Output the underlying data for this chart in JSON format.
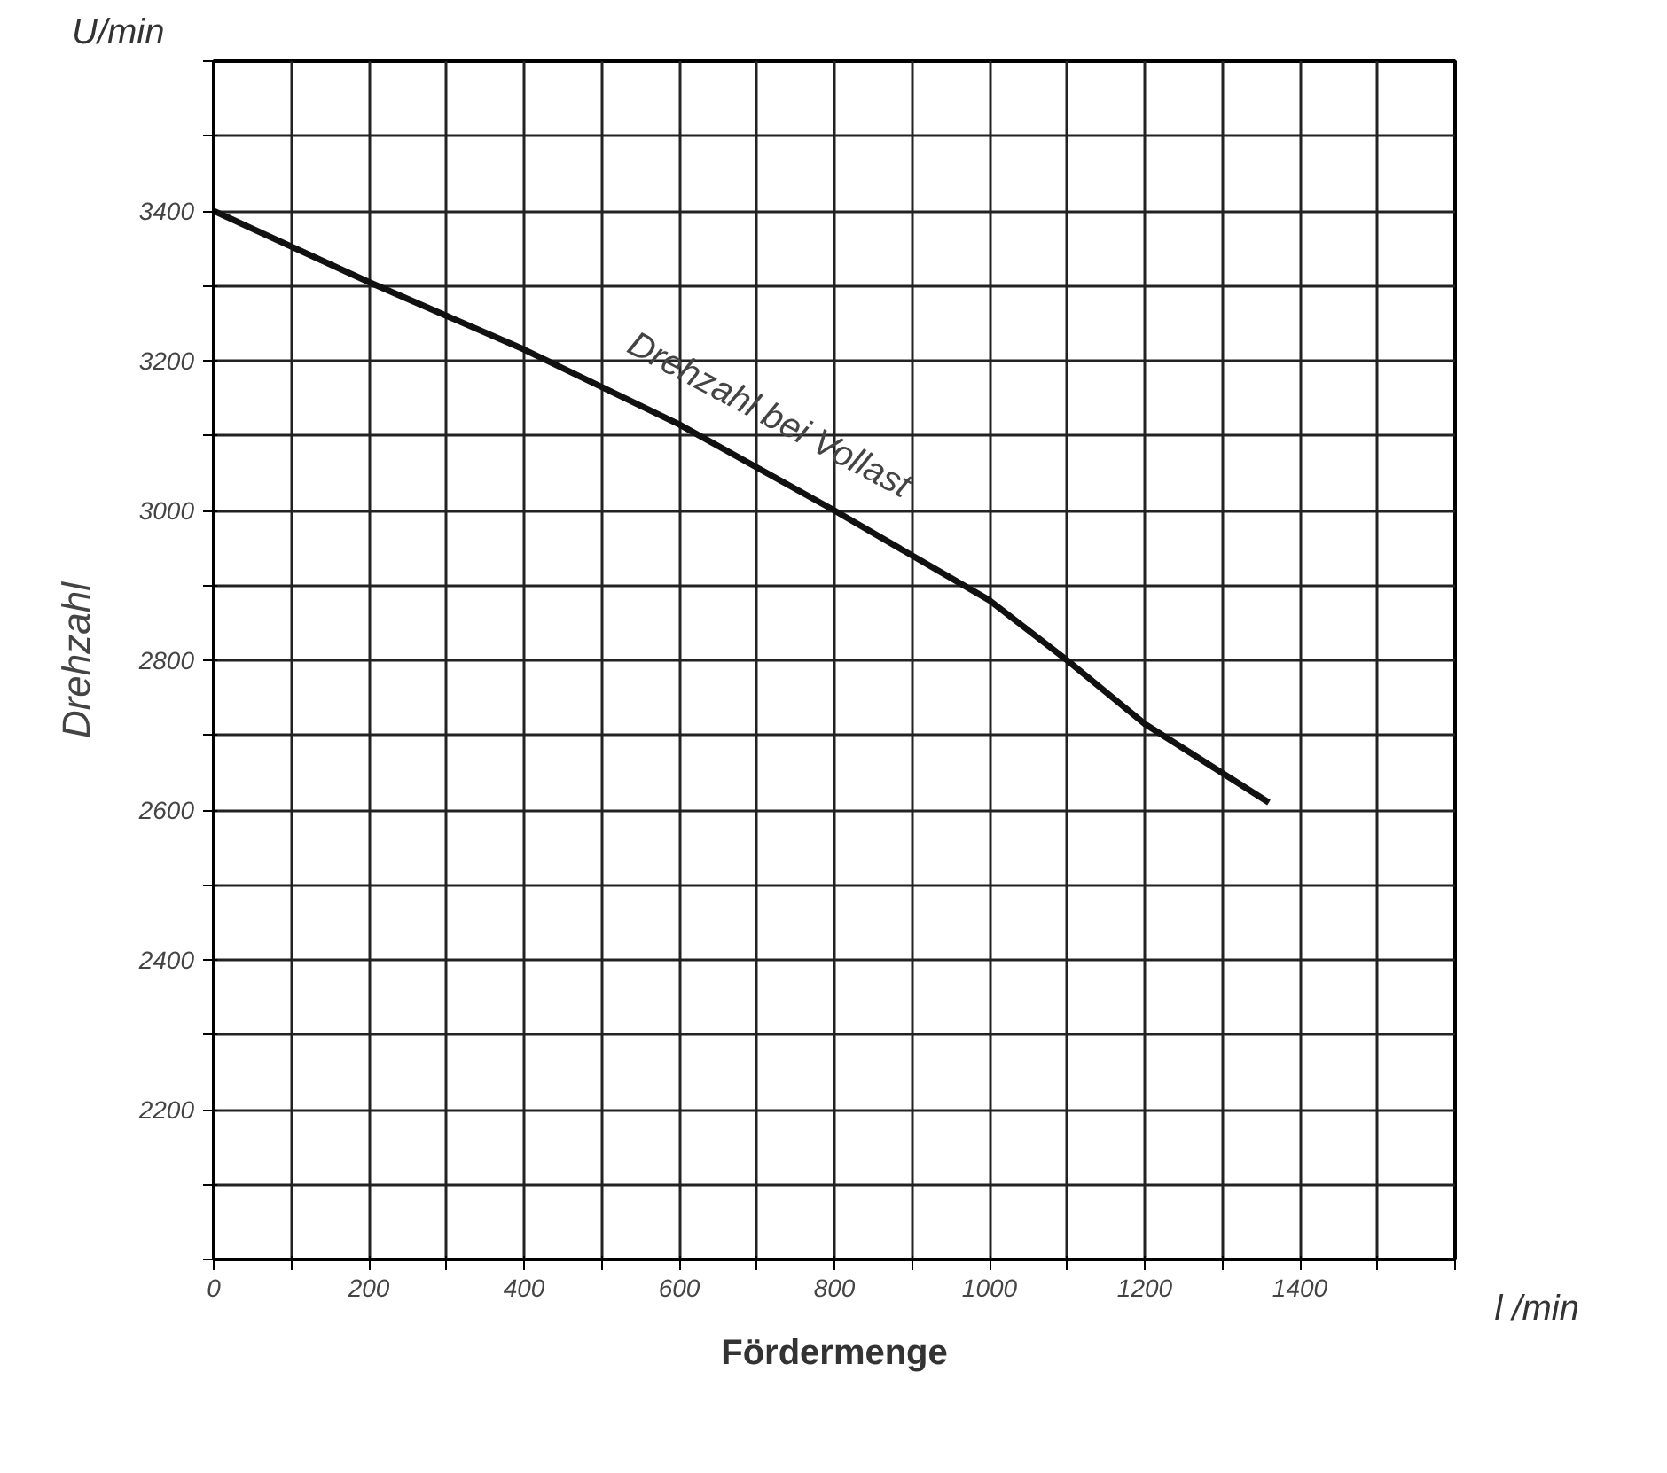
{
  "chart_data": {
    "type": "line",
    "xlabel": "Fördermenge",
    "ylabel": "Drehzahl",
    "x": [
      0,
      200,
      400,
      600,
      800,
      1000,
      1100,
      1200,
      1360
    ],
    "series": [
      {
        "color": "#111111",
        "values": [
          3400,
          3305,
          3215,
          3115,
          3000,
          2880,
          2800,
          2715,
          2610
        ]
      }
    ],
    "xlim": [
      0,
      1600
    ],
    "ylim": [
      2000,
      3600
    ],
    "xticks": [
      0,
      {
        "value": 100,
        "label": null
      },
      200,
      {
        "value": 300,
        "label": null
      },
      400,
      {
        "value": 500,
        "label": null
      },
      600,
      {
        "value": 700,
        "label": null
      },
      800,
      {
        "value": 900,
        "label": null
      },
      1000,
      {
        "value": 1100,
        "label": null
      },
      1200,
      {
        "value": 1300,
        "label": null
      },
      1400,
      {
        "value": 1500,
        "label": null
      },
      {
        "value": 1600,
        "label": null
      }
    ],
    "yticks": [
      {
        "value": 2000,
        "label": null
      },
      {
        "value": 2100,
        "label": null
      },
      2200,
      {
        "value": 2300,
        "label": null
      },
      2400,
      {
        "value": 2500,
        "label": null
      },
      2600,
      {
        "value": 2700,
        "label": null
      },
      2800,
      {
        "value": 2900,
        "label": null
      },
      3000,
      {
        "value": 3100,
        "label": null
      },
      3200,
      {
        "value": 3300,
        "label": null
      },
      3400,
      {
        "value": 3500,
        "label": null
      },
      {
        "value": 3600,
        "label": null
      }
    ],
    "grid": true,
    "marker": "none",
    "line_style": "solid",
    "annotations": [
      "U/min",
      "l /min",
      "Drehzahl bei Vollast"
    ]
  }
}
